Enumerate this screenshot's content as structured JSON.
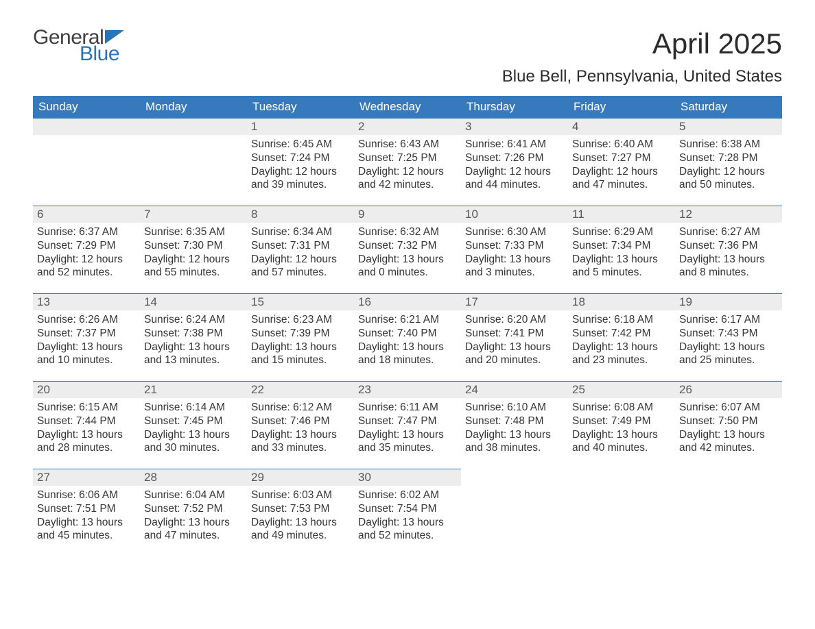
{
  "logo": {
    "text1": "General",
    "text2": "Blue"
  },
  "title": "April 2025",
  "subtitle": "Blue Bell, Pennsylvania, United States",
  "colors": {
    "header_bg": "#3679bc",
    "header_text": "#ffffff",
    "daynum_bg": "#ededed",
    "daynum_border": "#3679bc",
    "body_text": "#353535",
    "logo_blue": "#2874b8"
  },
  "day_headers": [
    "Sunday",
    "Monday",
    "Tuesday",
    "Wednesday",
    "Thursday",
    "Friday",
    "Saturday"
  ],
  "weeks": [
    [
      null,
      null,
      {
        "n": "1",
        "sr": "6:45 AM",
        "ss": "7:24 PM",
        "dl": "12 hours and 39 minutes."
      },
      {
        "n": "2",
        "sr": "6:43 AM",
        "ss": "7:25 PM",
        "dl": "12 hours and 42 minutes."
      },
      {
        "n": "3",
        "sr": "6:41 AM",
        "ss": "7:26 PM",
        "dl": "12 hours and 44 minutes."
      },
      {
        "n": "4",
        "sr": "6:40 AM",
        "ss": "7:27 PM",
        "dl": "12 hours and 47 minutes."
      },
      {
        "n": "5",
        "sr": "6:38 AM",
        "ss": "7:28 PM",
        "dl": "12 hours and 50 minutes."
      }
    ],
    [
      {
        "n": "6",
        "sr": "6:37 AM",
        "ss": "7:29 PM",
        "dl": "12 hours and 52 minutes."
      },
      {
        "n": "7",
        "sr": "6:35 AM",
        "ss": "7:30 PM",
        "dl": "12 hours and 55 minutes."
      },
      {
        "n": "8",
        "sr": "6:34 AM",
        "ss": "7:31 PM",
        "dl": "12 hours and 57 minutes."
      },
      {
        "n": "9",
        "sr": "6:32 AM",
        "ss": "7:32 PM",
        "dl": "13 hours and 0 minutes."
      },
      {
        "n": "10",
        "sr": "6:30 AM",
        "ss": "7:33 PM",
        "dl": "13 hours and 3 minutes."
      },
      {
        "n": "11",
        "sr": "6:29 AM",
        "ss": "7:34 PM",
        "dl": "13 hours and 5 minutes."
      },
      {
        "n": "12",
        "sr": "6:27 AM",
        "ss": "7:36 PM",
        "dl": "13 hours and 8 minutes."
      }
    ],
    [
      {
        "n": "13",
        "sr": "6:26 AM",
        "ss": "7:37 PM",
        "dl": "13 hours and 10 minutes."
      },
      {
        "n": "14",
        "sr": "6:24 AM",
        "ss": "7:38 PM",
        "dl": "13 hours and 13 minutes."
      },
      {
        "n": "15",
        "sr": "6:23 AM",
        "ss": "7:39 PM",
        "dl": "13 hours and 15 minutes."
      },
      {
        "n": "16",
        "sr": "6:21 AM",
        "ss": "7:40 PM",
        "dl": "13 hours and 18 minutes."
      },
      {
        "n": "17",
        "sr": "6:20 AM",
        "ss": "7:41 PM",
        "dl": "13 hours and 20 minutes."
      },
      {
        "n": "18",
        "sr": "6:18 AM",
        "ss": "7:42 PM",
        "dl": "13 hours and 23 minutes."
      },
      {
        "n": "19",
        "sr": "6:17 AM",
        "ss": "7:43 PM",
        "dl": "13 hours and 25 minutes."
      }
    ],
    [
      {
        "n": "20",
        "sr": "6:15 AM",
        "ss": "7:44 PM",
        "dl": "13 hours and 28 minutes."
      },
      {
        "n": "21",
        "sr": "6:14 AM",
        "ss": "7:45 PM",
        "dl": "13 hours and 30 minutes."
      },
      {
        "n": "22",
        "sr": "6:12 AM",
        "ss": "7:46 PM",
        "dl": "13 hours and 33 minutes."
      },
      {
        "n": "23",
        "sr": "6:11 AM",
        "ss": "7:47 PM",
        "dl": "13 hours and 35 minutes."
      },
      {
        "n": "24",
        "sr": "6:10 AM",
        "ss": "7:48 PM",
        "dl": "13 hours and 38 minutes."
      },
      {
        "n": "25",
        "sr": "6:08 AM",
        "ss": "7:49 PM",
        "dl": "13 hours and 40 minutes."
      },
      {
        "n": "26",
        "sr": "6:07 AM",
        "ss": "7:50 PM",
        "dl": "13 hours and 42 minutes."
      }
    ],
    [
      {
        "n": "27",
        "sr": "6:06 AM",
        "ss": "7:51 PM",
        "dl": "13 hours and 45 minutes."
      },
      {
        "n": "28",
        "sr": "6:04 AM",
        "ss": "7:52 PM",
        "dl": "13 hours and 47 minutes."
      },
      {
        "n": "29",
        "sr": "6:03 AM",
        "ss": "7:53 PM",
        "dl": "13 hours and 49 minutes."
      },
      {
        "n": "30",
        "sr": "6:02 AM",
        "ss": "7:54 PM",
        "dl": "13 hours and 52 minutes."
      },
      null,
      null,
      null
    ]
  ],
  "labels": {
    "sunrise": "Sunrise: ",
    "sunset": "Sunset: ",
    "daylight": "Daylight: "
  }
}
